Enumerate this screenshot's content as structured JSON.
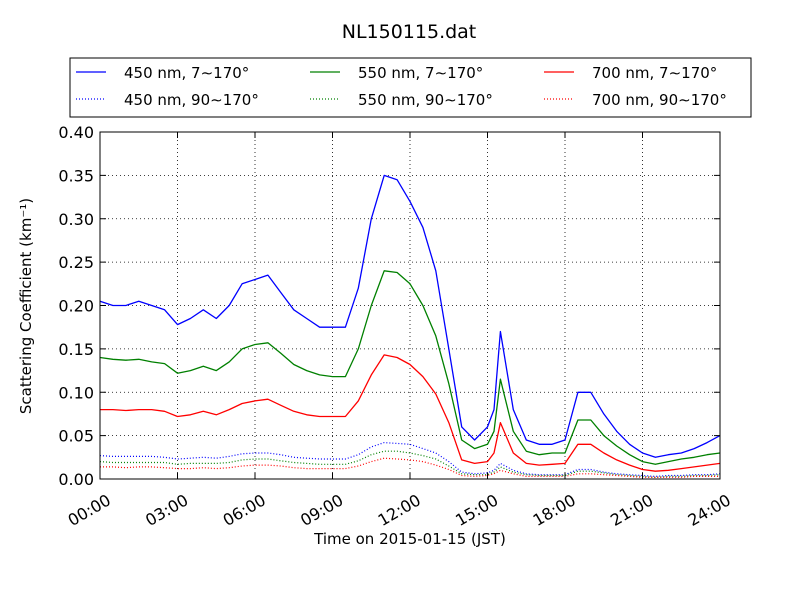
{
  "chart_data": {
    "type": "line",
    "title": "NL150115.dat",
    "xlabel": "Time on 2015-01-15 (JST)",
    "ylabel": "Scattering Coefficient (km⁻¹)",
    "xlim": [
      0,
      24
    ],
    "ylim": [
      0,
      0.4
    ],
    "grid": true,
    "legend_position": "top",
    "x_tick_labels": [
      "00:00",
      "03:00",
      "06:00",
      "09:00",
      "12:00",
      "15:00",
      "18:00",
      "21:00",
      "24:00"
    ],
    "y_tick_labels": [
      "0.00",
      "0.05",
      "0.10",
      "0.15",
      "0.20",
      "0.25",
      "0.30",
      "0.35",
      "0.40"
    ],
    "x": [
      0,
      0.5,
      1,
      1.5,
      2,
      2.5,
      3,
      3.5,
      4,
      4.5,
      5,
      5.5,
      6,
      6.5,
      7,
      7.5,
      8,
      8.5,
      9,
      9.5,
      10,
      10.5,
      11,
      11.5,
      12,
      12.5,
      13,
      13.5,
      14,
      14.5,
      15,
      15.25,
      15.5,
      16,
      16.5,
      17,
      17.5,
      18,
      18.5,
      19,
      19.5,
      20,
      20.5,
      21,
      21.5,
      22,
      22.5,
      23,
      23.5,
      24
    ],
    "series": [
      {
        "name": "450 nm, 7∼170°",
        "color": "#0000ff",
        "style": "solid",
        "values": [
          0.205,
          0.2,
          0.2,
          0.205,
          0.2,
          0.195,
          0.178,
          0.185,
          0.195,
          0.185,
          0.2,
          0.225,
          0.23,
          0.235,
          0.215,
          0.195,
          0.185,
          0.175,
          0.175,
          0.175,
          0.22,
          0.3,
          0.35,
          0.345,
          0.32,
          0.29,
          0.24,
          0.15,
          0.06,
          0.045,
          0.06,
          0.08,
          0.17,
          0.08,
          0.045,
          0.04,
          0.04,
          0.045,
          0.1,
          0.1,
          0.075,
          0.055,
          0.04,
          0.03,
          0.025,
          0.028,
          0.03,
          0.035,
          0.042,
          0.05
        ]
      },
      {
        "name": "550 nm, 7∼170°",
        "color": "#008000",
        "style": "solid",
        "values": [
          0.14,
          0.138,
          0.137,
          0.138,
          0.135,
          0.133,
          0.122,
          0.125,
          0.13,
          0.125,
          0.135,
          0.15,
          0.155,
          0.157,
          0.145,
          0.132,
          0.125,
          0.12,
          0.118,
          0.118,
          0.15,
          0.2,
          0.24,
          0.238,
          0.225,
          0.2,
          0.165,
          0.11,
          0.045,
          0.035,
          0.04,
          0.055,
          0.115,
          0.055,
          0.032,
          0.028,
          0.03,
          0.03,
          0.068,
          0.068,
          0.05,
          0.038,
          0.028,
          0.02,
          0.017,
          0.02,
          0.023,
          0.025,
          0.028,
          0.03
        ]
      },
      {
        "name": "700 nm, 7∼170°",
        "color": "#ff0000",
        "style": "solid",
        "values": [
          0.08,
          0.08,
          0.079,
          0.08,
          0.08,
          0.078,
          0.072,
          0.074,
          0.078,
          0.074,
          0.08,
          0.087,
          0.09,
          0.092,
          0.085,
          0.078,
          0.074,
          0.072,
          0.072,
          0.072,
          0.09,
          0.12,
          0.143,
          0.14,
          0.132,
          0.118,
          0.098,
          0.065,
          0.022,
          0.018,
          0.02,
          0.03,
          0.065,
          0.03,
          0.018,
          0.016,
          0.017,
          0.018,
          0.04,
          0.04,
          0.03,
          0.022,
          0.016,
          0.011,
          0.009,
          0.01,
          0.012,
          0.014,
          0.016,
          0.018
        ]
      },
      {
        "name": "450 nm, 90∼170°",
        "color": "#0000ff",
        "style": "dotted",
        "values": [
          0.027,
          0.026,
          0.026,
          0.026,
          0.026,
          0.025,
          0.023,
          0.024,
          0.025,
          0.024,
          0.026,
          0.029,
          0.03,
          0.03,
          0.028,
          0.025,
          0.024,
          0.023,
          0.023,
          0.023,
          0.028,
          0.037,
          0.042,
          0.041,
          0.04,
          0.035,
          0.03,
          0.02,
          0.008,
          0.006,
          0.007,
          0.01,
          0.018,
          0.01,
          0.006,
          0.005,
          0.005,
          0.005,
          0.011,
          0.011,
          0.008,
          0.006,
          0.005,
          0.004,
          0.003,
          0.004,
          0.004,
          0.005,
          0.005,
          0.006
        ]
      },
      {
        "name": "550 nm, 90∼170°",
        "color": "#008000",
        "style": "dotted",
        "values": [
          0.02,
          0.019,
          0.019,
          0.019,
          0.019,
          0.019,
          0.017,
          0.018,
          0.018,
          0.018,
          0.019,
          0.022,
          0.023,
          0.023,
          0.021,
          0.019,
          0.018,
          0.017,
          0.017,
          0.017,
          0.021,
          0.028,
          0.032,
          0.032,
          0.03,
          0.027,
          0.023,
          0.015,
          0.006,
          0.005,
          0.005,
          0.008,
          0.014,
          0.008,
          0.005,
          0.004,
          0.004,
          0.004,
          0.009,
          0.009,
          0.007,
          0.005,
          0.004,
          0.003,
          0.002,
          0.003,
          0.003,
          0.004,
          0.004,
          0.005
        ]
      },
      {
        "name": "700 nm, 90∼170°",
        "color": "#ff0000",
        "style": "dotted",
        "values": [
          0.014,
          0.014,
          0.013,
          0.014,
          0.014,
          0.013,
          0.012,
          0.012,
          0.013,
          0.012,
          0.013,
          0.015,
          0.016,
          0.016,
          0.015,
          0.013,
          0.012,
          0.012,
          0.012,
          0.012,
          0.015,
          0.02,
          0.024,
          0.023,
          0.022,
          0.02,
          0.016,
          0.011,
          0.004,
          0.003,
          0.004,
          0.006,
          0.01,
          0.006,
          0.003,
          0.003,
          0.003,
          0.003,
          0.006,
          0.006,
          0.005,
          0.004,
          0.003,
          0.002,
          0.002,
          0.002,
          0.002,
          0.003,
          0.003,
          0.003
        ]
      }
    ]
  }
}
